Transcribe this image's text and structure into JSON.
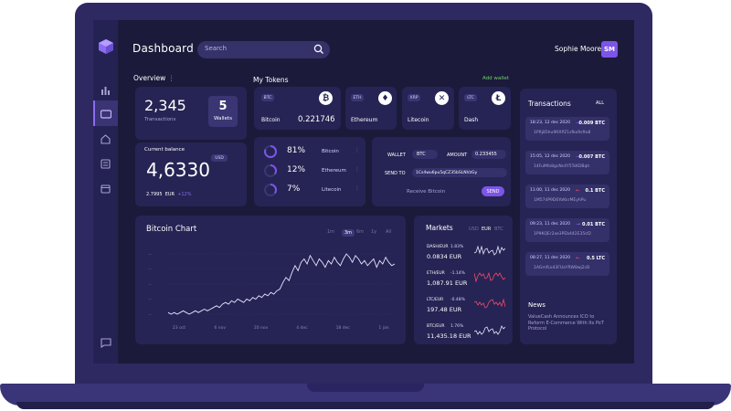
{
  "header": {
    "title": "Dashboard",
    "search_placeholder": "Search",
    "user_name": "Sophie Moore",
    "user_initials": "SM"
  },
  "overview": {
    "label": "Overview",
    "transactions_value": "2,345",
    "transactions_label": "Transactions",
    "wallets_value": "5",
    "wallets_label": "Wallets",
    "balance_label": "Current balance",
    "balance_currency": "USD",
    "balance_value": "4,6330",
    "eur_value": "2.7995",
    "eur_label": "EUR",
    "eur_change": "+12%"
  },
  "tokens": {
    "label": "My Tokens",
    "add_wallet": "Add wallet",
    "items": [
      {
        "code": "BTC",
        "name": "Bitcoin",
        "value": "0.221746"
      },
      {
        "code": "ETH",
        "name": "Ethereum",
        "value": ""
      },
      {
        "code": "XRP",
        "name": "Litecoin",
        "value": ""
      },
      {
        "code": "LTC",
        "name": "Dash",
        "value": ""
      }
    ]
  },
  "allocation": [
    {
      "percent": "81%",
      "name": "Bitcoin",
      "fraction": 0.81
    },
    {
      "percent": "12%",
      "name": "Ethereum",
      "fraction": 0.12
    },
    {
      "percent": "7%",
      "name": "Litecoin",
      "fraction": 0.07
    }
  ],
  "send": {
    "wallet_label": "WALLET",
    "wallet_value": "BTC",
    "amount_label": "AMOUNT",
    "amount_value": "0.233455",
    "send_to_label": "SEND TO",
    "send_to_value": "1Cs4wu6pu5qCZ35bSLNVzGy",
    "receive_label": "Receive Bitcoin",
    "send_button": "SEND"
  },
  "chart": {
    "title": "Bitcoin Chart",
    "tabs": [
      "1m",
      "3m",
      "6m",
      "1y",
      "All"
    ],
    "active_tab": "3m"
  },
  "chart_data": {
    "type": "line",
    "title": "Bitcoin Chart",
    "x_ticks": [
      "23 oct",
      "6 nov",
      "20 nov",
      "4 dec",
      "18 dec",
      "1 jan"
    ],
    "series": [
      {
        "values": [
          6,
          5,
          6,
          5,
          6,
          7,
          6,
          5,
          6,
          7,
          6,
          7,
          8,
          7,
          8,
          9,
          10,
          9,
          11,
          12,
          11,
          13,
          12,
          14,
          13,
          12,
          14,
          13,
          15,
          14,
          16,
          15,
          17,
          16,
          18,
          17,
          19,
          20,
          24,
          27,
          25,
          30,
          34,
          31,
          36,
          38,
          35,
          40,
          37,
          34,
          38,
          36,
          33,
          37,
          35,
          39,
          36,
          34,
          38,
          41,
          39,
          36,
          40,
          38,
          35,
          37,
          34,
          36,
          38,
          33,
          37,
          35,
          39,
          36,
          34,
          35
        ]
      }
    ]
  },
  "markets": {
    "label": "Markets",
    "tabs": [
      "USD",
      "EUR",
      "BTC"
    ],
    "active_tab": "EUR",
    "items": [
      {
        "pair": "DASH/EUR",
        "change": "1.83%",
        "value": "0.0834",
        "unit": "EUR",
        "color": "#e8e6ff"
      },
      {
        "pair": "ETH/EUR",
        "change": "-1.14%",
        "value": "1,087.91",
        "unit": "EUR",
        "color": "#f04a6a"
      },
      {
        "pair": "LTC/EUR",
        "change": "-0.48%",
        "value": "197.48",
        "unit": "EUR",
        "color": "#f04a6a"
      },
      {
        "pair": "BTC/EUR",
        "change": "1.76%",
        "value": "11,435.18",
        "unit": "EUR",
        "color": "#e8e6ff"
      }
    ]
  },
  "transactions": {
    "label": "Transactions",
    "filter": "ALL",
    "items": [
      {
        "date": "18:23, 12 dec 2020",
        "amount": "0.009 BTC",
        "hash": "1PRj85hu9RXPZ1zfko9sfto8",
        "direction": "in"
      },
      {
        "date": "15:05, 12 dec 2020",
        "amount": "0.007 BTC",
        "hash": "14FuMfo8gcNc4Y5TsKDBqh",
        "direction": "in"
      },
      {
        "date": "11:00, 11 dec 2020",
        "amount": "0.1 BTC",
        "hash": "1M57dP9D6YoKkrMEyhPu",
        "direction": "out"
      },
      {
        "date": "09:23, 11 dec 2020",
        "amount": "0.01 BTC",
        "hash": "1P9KQEr2xe3PEb442E35sf2",
        "direction": "in"
      },
      {
        "date": "08:27, 11 dec 2020",
        "amount": "0.5 LTC",
        "hash": "1AGmfLo43FUaYRW8wj2cB",
        "direction": "out"
      }
    ]
  },
  "news": {
    "label": "News",
    "headline": "ValueCash Announces ICO to Reform E-Commerce With Its PoT Protocol"
  },
  "colors": {
    "accent": "#8a6cf0",
    "positive": "#6fd36a",
    "negative": "#f04a6a"
  }
}
